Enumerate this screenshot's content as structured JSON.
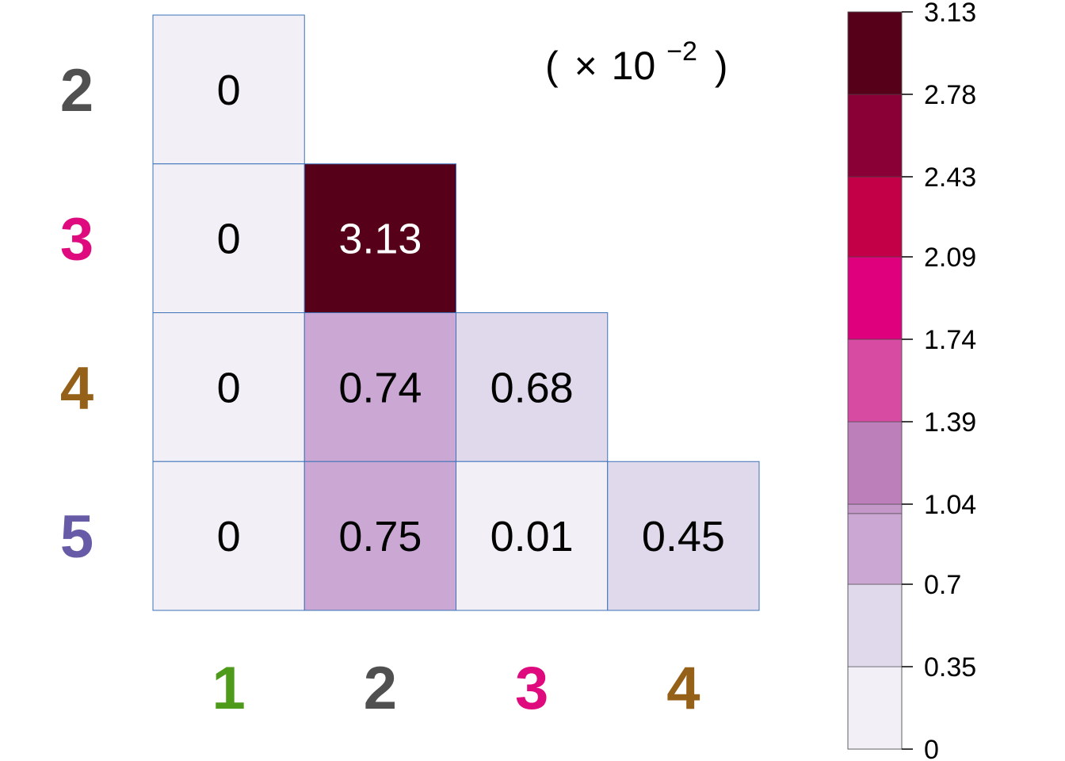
{
  "chart_data": {
    "type": "heatmap",
    "layout": "lower-triangular",
    "scale_note": {
      "open": "(",
      "times": "×",
      "base": "10",
      "exponent": "−2",
      "close": ")"
    },
    "rows": [
      {
        "label": "2",
        "color": "#505050"
      },
      {
        "label": "3",
        "color": "#de0a7e"
      },
      {
        "label": "4",
        "color": "#956119"
      },
      {
        "label": "5",
        "color": "#675aa7"
      }
    ],
    "columns": [
      {
        "label": "1",
        "color": "#4e9a1a"
      },
      {
        "label": "2",
        "color": "#505050"
      },
      {
        "label": "3",
        "color": "#de0a7e"
      },
      {
        "label": "4",
        "color": "#956119"
      }
    ],
    "cells": [
      {
        "row": 0,
        "col": 0,
        "value": 0,
        "label": "0"
      },
      {
        "row": 1,
        "col": 0,
        "value": 0,
        "label": "0"
      },
      {
        "row": 1,
        "col": 1,
        "value": 3.13,
        "label": "3.13"
      },
      {
        "row": 2,
        "col": 0,
        "value": 0,
        "label": "0"
      },
      {
        "row": 2,
        "col": 1,
        "value": 0.74,
        "label": "0.74"
      },
      {
        "row": 2,
        "col": 2,
        "value": 0.68,
        "label": "0.68"
      },
      {
        "row": 3,
        "col": 0,
        "value": 0,
        "label": "0"
      },
      {
        "row": 3,
        "col": 1,
        "value": 0.75,
        "label": "0.75"
      },
      {
        "row": 3,
        "col": 2,
        "value": 0.01,
        "label": "0.01"
      },
      {
        "row": 3,
        "col": 3,
        "value": 0.45,
        "label": "0.45"
      }
    ],
    "colorbar": {
      "ticks": [
        {
          "value": 0,
          "label": "0"
        },
        {
          "value": 0.35,
          "label": "0.35"
        },
        {
          "value": 0.7,
          "label": "0.7"
        },
        {
          "value": 1.04,
          "label": "1.04"
        },
        {
          "value": 1.39,
          "label": "1.39"
        },
        {
          "value": 1.74,
          "label": "1.74"
        },
        {
          "value": 2.09,
          "label": "2.09"
        },
        {
          "value": 2.43,
          "label": "2.43"
        },
        {
          "value": 2.78,
          "label": "2.78"
        },
        {
          "value": 3.13,
          "label": "3.13"
        }
      ],
      "bins": [
        {
          "from": 0,
          "to": 0.35,
          "color": "#f3eff6"
        },
        {
          "from": 0.35,
          "to": 0.7,
          "color": "#e0d8eb"
        },
        {
          "from": 0.7,
          "to": 1.0,
          "color": "#cba8d3"
        },
        {
          "from": 1.0,
          "to": 1.04,
          "color": "#c497c9"
        },
        {
          "from": 1.04,
          "to": 1.39,
          "color": "#bd7fba"
        },
        {
          "from": 1.39,
          "to": 1.74,
          "color": "#d84ba3"
        },
        {
          "from": 1.74,
          "to": 2.09,
          "color": "#de007c"
        },
        {
          "from": 2.09,
          "to": 2.43,
          "color": "#c30047"
        },
        {
          "from": 2.43,
          "to": 2.78,
          "color": "#8a0036"
        },
        {
          "from": 2.78,
          "to": 3.13,
          "color": "#56001a"
        }
      ],
      "min": 0,
      "max": 3.13
    },
    "cell_border_color": "#3a73b8",
    "dark_text_threshold": 2.0
  }
}
